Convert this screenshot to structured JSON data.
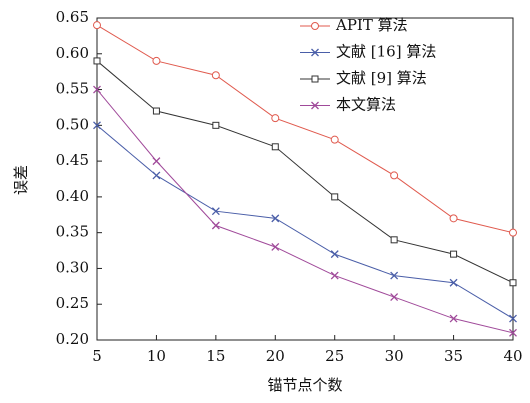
{
  "chart_data": {
    "type": "line",
    "x_label": "锚节点个数",
    "y_label": "误差",
    "x": [
      5,
      10,
      15,
      20,
      25,
      30,
      35,
      40
    ],
    "xlim": [
      5,
      40
    ],
    "xticks": [
      5,
      10,
      15,
      20,
      25,
      30,
      35,
      40
    ],
    "ylim": [
      0.2,
      0.65
    ],
    "yticks": [
      {
        "value": 0.2,
        "label": "0.20"
      },
      0.25,
      {
        "value": 0.3,
        "label": "0.30"
      },
      0.35,
      {
        "value": 0.4,
        "label": "0.40"
      },
      0.45,
      {
        "value": 0.5,
        "label": "0.50"
      },
      0.55,
      {
        "value": 0.6,
        "label": "0.60"
      },
      0.65
    ],
    "legend": "upper right",
    "series": [
      {
        "name": "APIT 算法",
        "color": "#e05a4e",
        "marker": "circle",
        "values": [
          0.64,
          0.59,
          0.57,
          0.51,
          0.48,
          0.43,
          0.37,
          0.35
        ]
      },
      {
        "name": "文献 [16] 算法",
        "color": "#4a5ea8",
        "marker": "x",
        "values": [
          0.5,
          0.43,
          0.38,
          0.37,
          0.32,
          0.29,
          0.28,
          0.23
        ]
      },
      {
        "name": "文献 [9] 算法",
        "color": "#333333",
        "marker": "square",
        "values": [
          0.59,
          0.52,
          0.5,
          0.47,
          0.4,
          0.34,
          0.32,
          0.28
        ]
      },
      {
        "name": "本文算法",
        "color": "#a04a9a",
        "marker": "x",
        "values": [
          0.55,
          0.45,
          0.36,
          0.33,
          0.29,
          0.26,
          0.23,
          0.21
        ]
      }
    ]
  }
}
